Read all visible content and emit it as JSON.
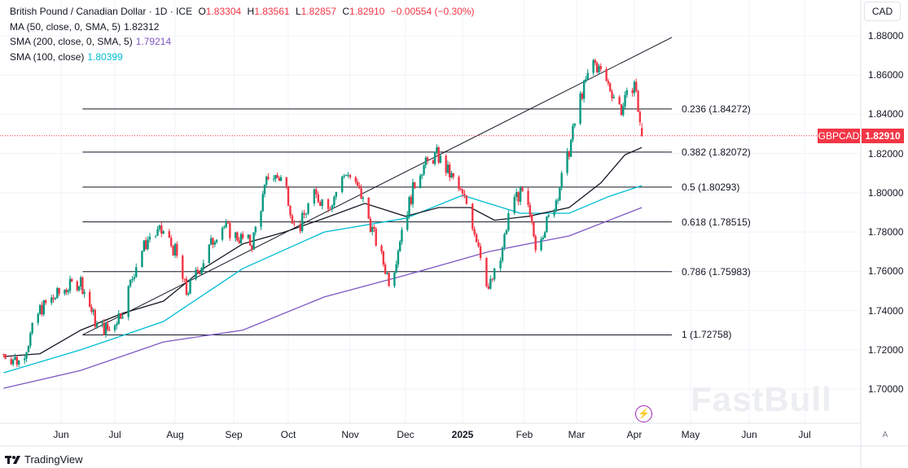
{
  "header": {
    "title": "British Pound / Canadian Dollar · 1D · ICE",
    "o_label": "O",
    "o": "1.83304",
    "h_label": "H",
    "h": "1.83561",
    "l_label": "L",
    "l": "1.82857",
    "c_label": "C",
    "c": "1.82910",
    "change": "−0.00554 (−0.30%)"
  },
  "indicators": [
    {
      "label": "MA (50, close, 0, SMA, 5)",
      "value": "1.82312",
      "color": "#131722"
    },
    {
      "label": "SMA (200, close, 0, SMA, 5)",
      "value": "1.79214",
      "color": "#7e57c2"
    },
    {
      "label": "SMA (100, close)",
      "value": "1.80399",
      "color": "#00bcd4"
    }
  ],
  "currency": "CAD",
  "price_tag": {
    "symbol": "GBPCAD",
    "price": "1.82910",
    "color": "#f23645"
  },
  "y_ticks": [
    "1.88000",
    "1.86000",
    "1.84000",
    "1.82000",
    "1.80000",
    "1.78000",
    "1.76000",
    "1.74000",
    "1.72000",
    "1.70000"
  ],
  "x_ticks": [
    {
      "label": "Jun",
      "bold": false
    },
    {
      "label": "Jul",
      "bold": false
    },
    {
      "label": "Aug",
      "bold": false
    },
    {
      "label": "Sep",
      "bold": false
    },
    {
      "label": "Oct",
      "bold": false
    },
    {
      "label": "Nov",
      "bold": false
    },
    {
      "label": "Dec",
      "bold": false
    },
    {
      "label": "2025",
      "bold": true
    },
    {
      "label": "Feb",
      "bold": false
    },
    {
      "label": "Mar",
      "bold": false
    },
    {
      "label": "Apr",
      "bold": false
    },
    {
      "label": "May",
      "bold": false
    },
    {
      "label": "Jun",
      "bold": false
    },
    {
      "label": "Jul",
      "bold": false
    }
  ],
  "fib_levels": [
    {
      "label": "0.236 (1.84272)",
      "price": 1.84272
    },
    {
      "label": "0.382 (1.82072)",
      "price": 1.82072
    },
    {
      "label": "0.5 (1.80293)",
      "price": 1.80293
    },
    {
      "label": "0.618 (1.78515)",
      "price": 1.78515
    },
    {
      "label": "0.786 (1.75983)",
      "price": 1.75983
    },
    {
      "label": "1 (1.72758)",
      "price": 1.72758
    }
  ],
  "chart_data": {
    "type": "candlestick",
    "ylim": [
      1.69,
      1.89
    ],
    "colors": {
      "up": "#089981",
      "down": "#f23645"
    },
    "price_anchors": [
      [
        "2024-05-02",
        1.7178
      ],
      [
        "2024-05-11",
        1.7137
      ],
      [
        "2024-05-21",
        1.7406
      ],
      [
        "2024-06-03",
        1.751
      ],
      [
        "2024-06-12",
        1.755
      ],
      [
        "2024-06-21",
        1.732
      ],
      [
        "2024-06-28",
        1.73
      ],
      [
        "2024-07-05",
        1.7406
      ],
      [
        "2024-07-13",
        1.767
      ],
      [
        "2024-07-19",
        1.778
      ],
      [
        "2024-07-26",
        1.78
      ],
      [
        "2024-08-01",
        1.77
      ],
      [
        "2024-08-07",
        1.749
      ],
      [
        "2024-08-16",
        1.7655
      ],
      [
        "2024-08-25",
        1.784
      ],
      [
        "2024-09-02",
        1.778
      ],
      [
        "2024-09-11",
        1.774
      ],
      [
        "2024-09-20",
        1.809
      ],
      [
        "2024-09-29",
        1.807
      ],
      [
        "2024-10-05",
        1.778
      ],
      [
        "2024-10-13",
        1.7987
      ],
      [
        "2024-10-22",
        1.7946
      ],
      [
        "2024-10-30",
        1.811
      ],
      [
        "2024-11-07",
        1.7987
      ],
      [
        "2024-11-14",
        1.778
      ],
      [
        "2024-11-23",
        1.753
      ],
      [
        "2024-11-29",
        1.782
      ],
      [
        "2024-12-08",
        1.811
      ],
      [
        "2024-12-18",
        1.8194
      ],
      [
        "2024-12-28",
        1.805
      ],
      [
        "2025-01-03",
        1.7946
      ],
      [
        "2025-01-09",
        1.774
      ],
      [
        "2025-01-14",
        1.751
      ],
      [
        "2025-01-20",
        1.7655
      ],
      [
        "2025-01-26",
        1.7987
      ],
      [
        "2025-02-01",
        1.7987
      ],
      [
        "2025-02-07",
        1.774
      ],
      [
        "2025-02-16",
        1.79
      ],
      [
        "2025-02-24",
        1.8174
      ],
      [
        "2025-03-03",
        1.8485
      ],
      [
        "2025-03-10",
        1.867
      ],
      [
        "2025-03-16",
        1.8588
      ],
      [
        "2025-03-25",
        1.8423
      ],
      [
        "2025-04-01",
        1.8568
      ],
      [
        "2025-04-05",
        1.8291
      ]
    ],
    "sma50": {
      "color": "#131722",
      "points": [
        [
          "2024-05-02",
          1.7166
        ],
        [
          "2024-05-21",
          1.718
        ],
        [
          "2024-06-12",
          1.73
        ],
        [
          "2024-07-05",
          1.7386
        ],
        [
          "2024-07-26",
          1.7448
        ],
        [
          "2024-08-16",
          1.7614
        ],
        [
          "2024-09-06",
          1.774
        ],
        [
          "2024-09-29",
          1.78
        ],
        [
          "2024-10-19",
          1.787
        ],
        [
          "2024-11-09",
          1.7946
        ],
        [
          "2024-12-01",
          1.788
        ],
        [
          "2024-12-19",
          1.7925
        ],
        [
          "2025-01-05",
          1.7925
        ],
        [
          "2025-01-17",
          1.786
        ],
        [
          "2025-02-03",
          1.788
        ],
        [
          "2025-02-25",
          1.7925
        ],
        [
          "2025-03-14",
          1.805
        ],
        [
          "2025-03-27",
          1.8194
        ],
        [
          "2025-04-05",
          1.8231
        ]
      ]
    },
    "sma100": {
      "color": "#00bcd4",
      "points": [
        [
          "2024-05-02",
          1.7083
        ],
        [
          "2024-06-12",
          1.72
        ],
        [
          "2024-07-26",
          1.7344
        ],
        [
          "2024-09-06",
          1.7614
        ],
        [
          "2024-10-19",
          1.78
        ],
        [
          "2024-12-01",
          1.787
        ],
        [
          "2025-01-01",
          1.7987
        ],
        [
          "2025-01-30",
          1.7896
        ],
        [
          "2025-02-25",
          1.7896
        ],
        [
          "2025-03-18",
          1.798
        ],
        [
          "2025-04-05",
          1.8037
        ]
      ]
    },
    "sma200": {
      "color": "#7e57c2",
      "points": [
        [
          "2024-05-02",
          1.7004
        ],
        [
          "2024-06-12",
          1.7095
        ],
        [
          "2024-07-26",
          1.724
        ],
        [
          "2024-09-06",
          1.73
        ],
        [
          "2024-10-19",
          1.7469
        ],
        [
          "2024-12-01",
          1.758
        ],
        [
          "2025-01-14",
          1.77
        ],
        [
          "2025-02-03",
          1.774
        ],
        [
          "2025-02-25",
          1.778
        ],
        [
          "2025-04-05",
          1.7925
        ]
      ]
    },
    "trendline": [
      [
        "2024-06-13",
        1.72758
      ],
      [
        "2025-04-21",
        1.8792
      ]
    ],
    "fib_range": [
      "2024-06-13",
      "2025-04-21"
    ]
  },
  "watermark": "FastBull",
  "footer": {
    "brand": "TradingView",
    "auto_label": "A"
  }
}
